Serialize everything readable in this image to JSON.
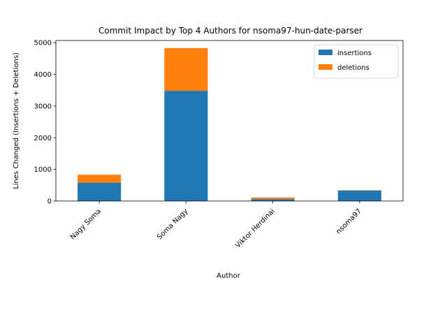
{
  "chart_data": {
    "type": "bar",
    "stacked": true,
    "title": "Commit Impact by Top 4 Authors for nsoma97-hun-date-parser",
    "xlabel": "Author",
    "ylabel": "Lines Changed (Insertions + Deletions)",
    "categories": [
      "Nagy Soma",
      "Soma Nagy",
      "Viktor Herdinai",
      "nsoma97"
    ],
    "series": [
      {
        "name": "insertions",
        "values": [
          580,
          3480,
          60,
          330
        ],
        "color": "#1f77b4"
      },
      {
        "name": "deletions",
        "values": [
          250,
          1350,
          50,
          10
        ],
        "color": "#ff7f0e"
      }
    ],
    "ylim": [
      0,
      5070
    ],
    "yticks": [
      0,
      1000,
      2000,
      3000,
      4000,
      5000
    ],
    "ytick_labels": [
      "0",
      "1000",
      "2000",
      "3000",
      "4000",
      "5000"
    ],
    "grid": false,
    "legend_position": "top-right"
  }
}
